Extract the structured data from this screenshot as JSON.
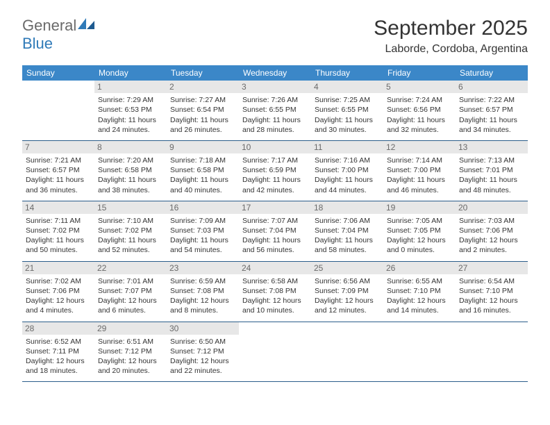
{
  "logo": {
    "text1": "General",
    "text2": "Blue"
  },
  "title": "September 2025",
  "location": "Laborde, Cordoba, Argentina",
  "colors": {
    "header_bg": "#3b87c8",
    "header_fg": "#ffffff",
    "daynum_bg": "#e7e7e7",
    "daynum_fg": "#6a6a6a",
    "row_border": "#2a5d8a",
    "logo_gray": "#6a6a6a",
    "logo_blue": "#2f7ab8"
  },
  "weekdays": [
    "Sunday",
    "Monday",
    "Tuesday",
    "Wednesday",
    "Thursday",
    "Friday",
    "Saturday"
  ],
  "days": [
    {
      "n": "",
      "sr": "",
      "ss": "",
      "dl": ""
    },
    {
      "n": 1,
      "sr": "7:29 AM",
      "ss": "6:53 PM",
      "dl": "11 hours and 24 minutes."
    },
    {
      "n": 2,
      "sr": "7:27 AM",
      "ss": "6:54 PM",
      "dl": "11 hours and 26 minutes."
    },
    {
      "n": 3,
      "sr": "7:26 AM",
      "ss": "6:55 PM",
      "dl": "11 hours and 28 minutes."
    },
    {
      "n": 4,
      "sr": "7:25 AM",
      "ss": "6:55 PM",
      "dl": "11 hours and 30 minutes."
    },
    {
      "n": 5,
      "sr": "7:24 AM",
      "ss": "6:56 PM",
      "dl": "11 hours and 32 minutes."
    },
    {
      "n": 6,
      "sr": "7:22 AM",
      "ss": "6:57 PM",
      "dl": "11 hours and 34 minutes."
    },
    {
      "n": 7,
      "sr": "7:21 AM",
      "ss": "6:57 PM",
      "dl": "11 hours and 36 minutes."
    },
    {
      "n": 8,
      "sr": "7:20 AM",
      "ss": "6:58 PM",
      "dl": "11 hours and 38 minutes."
    },
    {
      "n": 9,
      "sr": "7:18 AM",
      "ss": "6:58 PM",
      "dl": "11 hours and 40 minutes."
    },
    {
      "n": 10,
      "sr": "7:17 AM",
      "ss": "6:59 PM",
      "dl": "11 hours and 42 minutes."
    },
    {
      "n": 11,
      "sr": "7:16 AM",
      "ss": "7:00 PM",
      "dl": "11 hours and 44 minutes."
    },
    {
      "n": 12,
      "sr": "7:14 AM",
      "ss": "7:00 PM",
      "dl": "11 hours and 46 minutes."
    },
    {
      "n": 13,
      "sr": "7:13 AM",
      "ss": "7:01 PM",
      "dl": "11 hours and 48 minutes."
    },
    {
      "n": 14,
      "sr": "7:11 AM",
      "ss": "7:02 PM",
      "dl": "11 hours and 50 minutes."
    },
    {
      "n": 15,
      "sr": "7:10 AM",
      "ss": "7:02 PM",
      "dl": "11 hours and 52 minutes."
    },
    {
      "n": 16,
      "sr": "7:09 AM",
      "ss": "7:03 PM",
      "dl": "11 hours and 54 minutes."
    },
    {
      "n": 17,
      "sr": "7:07 AM",
      "ss": "7:04 PM",
      "dl": "11 hours and 56 minutes."
    },
    {
      "n": 18,
      "sr": "7:06 AM",
      "ss": "7:04 PM",
      "dl": "11 hours and 58 minutes."
    },
    {
      "n": 19,
      "sr": "7:05 AM",
      "ss": "7:05 PM",
      "dl": "12 hours and 0 minutes."
    },
    {
      "n": 20,
      "sr": "7:03 AM",
      "ss": "7:06 PM",
      "dl": "12 hours and 2 minutes."
    },
    {
      "n": 21,
      "sr": "7:02 AM",
      "ss": "7:06 PM",
      "dl": "12 hours and 4 minutes."
    },
    {
      "n": 22,
      "sr": "7:01 AM",
      "ss": "7:07 PM",
      "dl": "12 hours and 6 minutes."
    },
    {
      "n": 23,
      "sr": "6:59 AM",
      "ss": "7:08 PM",
      "dl": "12 hours and 8 minutes."
    },
    {
      "n": 24,
      "sr": "6:58 AM",
      "ss": "7:08 PM",
      "dl": "12 hours and 10 minutes."
    },
    {
      "n": 25,
      "sr": "6:56 AM",
      "ss": "7:09 PM",
      "dl": "12 hours and 12 minutes."
    },
    {
      "n": 26,
      "sr": "6:55 AM",
      "ss": "7:10 PM",
      "dl": "12 hours and 14 minutes."
    },
    {
      "n": 27,
      "sr": "6:54 AM",
      "ss": "7:10 PM",
      "dl": "12 hours and 16 minutes."
    },
    {
      "n": 28,
      "sr": "6:52 AM",
      "ss": "7:11 PM",
      "dl": "12 hours and 18 minutes."
    },
    {
      "n": 29,
      "sr": "6:51 AM",
      "ss": "7:12 PM",
      "dl": "12 hours and 20 minutes."
    },
    {
      "n": 30,
      "sr": "6:50 AM",
      "ss": "7:12 PM",
      "dl": "12 hours and 22 minutes."
    },
    {
      "n": "",
      "sr": "",
      "ss": "",
      "dl": ""
    },
    {
      "n": "",
      "sr": "",
      "ss": "",
      "dl": ""
    },
    {
      "n": "",
      "sr": "",
      "ss": "",
      "dl": ""
    },
    {
      "n": "",
      "sr": "",
      "ss": "",
      "dl": ""
    }
  ],
  "labels": {
    "sunrise": "Sunrise:",
    "sunset": "Sunset:",
    "daylight": "Daylight:"
  }
}
